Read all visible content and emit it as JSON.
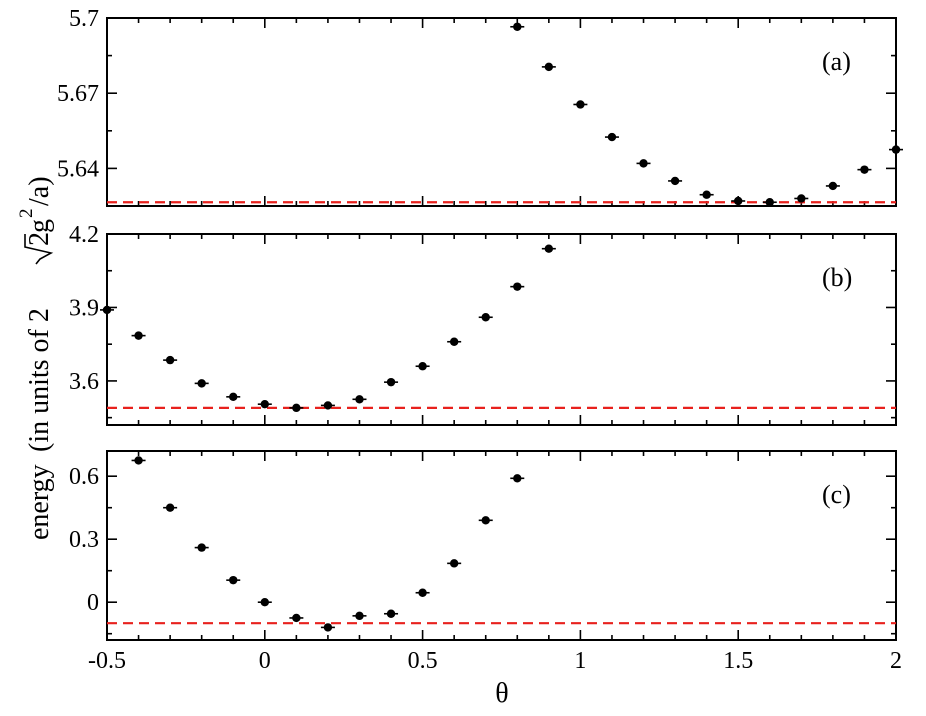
{
  "y_axis_title": {
    "prefix": "energy",
    "middle": "(in units of 2",
    "root": "2",
    "g": "g",
    "sup": "2",
    "suffix": "/a)"
  },
  "x_axis_title": "θ",
  "chart_data": [
    {
      "type": "scatter",
      "panel": "(a)",
      "xlim": [
        -0.5,
        2.0
      ],
      "ylim": [
        5.625,
        5.7
      ],
      "y_ticks": [
        5.64,
        5.67,
        5.7
      ],
      "y_tick_labels": [
        "5.64",
        "5.67",
        "5.7"
      ],
      "x_ticks": [
        -0.5,
        0,
        0.5,
        1,
        1.5,
        2
      ],
      "reference_line": 5.6265,
      "x": [
        0.8,
        0.9,
        1.0,
        1.1,
        1.2,
        1.3,
        1.4,
        1.5,
        1.6,
        1.7,
        1.8,
        1.9,
        2.0
      ],
      "y": [
        5.6965,
        5.6805,
        5.6655,
        5.6525,
        5.642,
        5.635,
        5.6295,
        5.627,
        5.6265,
        5.628,
        5.633,
        5.6395,
        5.6475
      ],
      "grid": false
    },
    {
      "type": "scatter",
      "panel": "(b)",
      "xlim": [
        -0.5,
        2.0
      ],
      "ylim": [
        3.42,
        4.2
      ],
      "y_ticks": [
        3.6,
        3.9,
        4.2
      ],
      "y_tick_labels": [
        "3.6",
        "3.9",
        "4.2"
      ],
      "x_ticks": [
        -0.5,
        0,
        0.5,
        1,
        1.5,
        2
      ],
      "reference_line": 3.49,
      "x": [
        -0.5,
        -0.4,
        -0.3,
        -0.2,
        -0.1,
        0.0,
        0.1,
        0.2,
        0.3,
        0.4,
        0.5,
        0.6,
        0.7,
        0.8,
        0.9
      ],
      "y": [
        3.89,
        3.785,
        3.685,
        3.59,
        3.535,
        3.505,
        3.49,
        3.5,
        3.525,
        3.595,
        3.66,
        3.76,
        3.86,
        3.985,
        4.14
      ],
      "grid": false
    },
    {
      "type": "scatter",
      "panel": "(c)",
      "xlim": [
        -0.5,
        2.0
      ],
      "ylim": [
        -0.18,
        0.72
      ],
      "y_ticks": [
        0,
        0.3,
        0.6
      ],
      "y_tick_labels": [
        "0",
        "0.3",
        "0.6"
      ],
      "x_ticks": [
        -0.5,
        0,
        0.5,
        1,
        1.5,
        2
      ],
      "x_tick_labels": [
        "-0.5",
        "0",
        "0.5",
        "1",
        "1.5",
        "2"
      ],
      "reference_line": -0.1,
      "x": [
        -0.4,
        -0.3,
        -0.2,
        -0.1,
        0.0,
        0.1,
        0.2,
        0.3,
        0.4,
        0.5,
        0.6,
        0.7,
        0.8
      ],
      "y": [
        0.675,
        0.45,
        0.26,
        0.105,
        0.0,
        -0.075,
        -0.12,
        -0.065,
        -0.055,
        0.045,
        0.185,
        0.39,
        0.59
      ],
      "grid": false
    }
  ]
}
